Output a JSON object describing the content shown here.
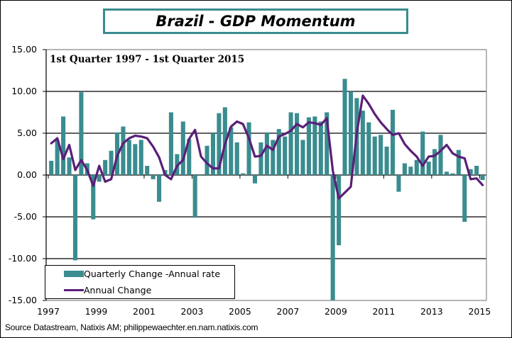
{
  "title": "Brazil - GDP Momentum",
  "source": "Source Datastream, Natixis AM;  philippewaechter.en.nam.natixis.com",
  "colors": {
    "bars": "#3a8c8f",
    "line": "#5a1f78",
    "frame": "#3a8c8f"
  },
  "chart_data": {
    "type": "bar",
    "title": "Brazil - GDP Momentum",
    "subtitle": "1st Quarter 1997 - 1st Quarter 2015",
    "xlabel": "",
    "ylabel": "",
    "ylim": [
      -15,
      15
    ],
    "yticks": [
      "15.00",
      "10.00",
      "5.00",
      "0.00",
      "-5.00",
      "-10.00",
      "-15.00"
    ],
    "ytick_values": [
      15,
      10,
      5,
      0,
      -5,
      -10,
      -15
    ],
    "xticks": [
      "1997",
      "1999",
      "2001",
      "2003",
      "2005",
      "2007",
      "2009",
      "2011",
      "2013",
      "2015"
    ],
    "x_start": "1997 Q1",
    "x_end": "2015 Q1",
    "grid": true,
    "legend_position": "bottom-left",
    "series": [
      {
        "name": "Quarterly Change -Annual rate",
        "type": "bar",
        "values": [
          1.7,
          4.2,
          7.0,
          2.1,
          -10.2,
          9.9,
          1.4,
          -5.3,
          -0.8,
          1.8,
          2.9,
          5.1,
          5.8,
          4.2,
          3.7,
          4.2,
          1.1,
          -0.5,
          -3.2,
          0.6,
          7.5,
          2.5,
          6.4,
          4.3,
          -5.1,
          -0.1,
          3.5,
          5.0,
          7.4,
          8.1,
          5.7,
          3.9,
          0.2,
          6.3,
          -1.0,
          3.9,
          5.1,
          4.2,
          5.5,
          4.6,
          7.5,
          7.4,
          4.2,
          6.9,
          7.0,
          6.4,
          7.5,
          -15.3,
          -8.4,
          11.5,
          10.0,
          9.2,
          7.7,
          6.3,
          4.6,
          4.8,
          3.4,
          7.8,
          -2.0,
          1.4,
          1.0,
          1.8,
          5.2,
          1.6,
          3.1,
          4.8,
          0.4,
          0.2,
          3.0,
          -5.6,
          0.7,
          1.1,
          -0.6
        ]
      },
      {
        "name": "Annual Change",
        "type": "line",
        "values": [
          3.8,
          4.4,
          1.9,
          3.6,
          0.6,
          1.8,
          0.6,
          -1.3,
          1.1,
          -0.8,
          -0.5,
          2.3,
          3.8,
          4.4,
          4.7,
          4.6,
          4.4,
          3.4,
          2.1,
          0.0,
          -0.5,
          1.1,
          1.8,
          4.3,
          5.4,
          2.2,
          1.4,
          0.8,
          0.8,
          3.7,
          5.8,
          6.4,
          6.1,
          4.4,
          2.2,
          2.3,
          3.5,
          3.0,
          4.6,
          4.9,
          5.3,
          6.1,
          5.7,
          6.3,
          6.2,
          6.0,
          6.8,
          0.5,
          -2.8,
          -2.1,
          -1.4,
          5.0,
          9.5,
          8.5,
          7.3,
          6.3,
          5.5,
          4.8,
          5.0,
          3.7,
          2.9,
          2.2,
          1.1,
          2.2,
          2.3,
          2.9,
          3.6,
          2.6,
          2.2,
          2.0,
          -0.5,
          -0.4,
          -1.2
        ]
      }
    ]
  }
}
